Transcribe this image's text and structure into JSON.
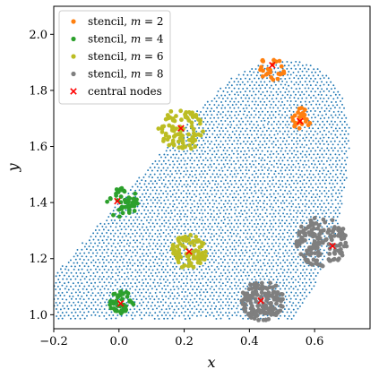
{
  "chart_data": {
    "type": "scatter",
    "title": "",
    "xlabel": "x",
    "ylabel": "y",
    "xlim": [
      -0.2,
      0.77
    ],
    "ylim": [
      0.95,
      2.1
    ],
    "x_ticks": [
      -0.2,
      0.0,
      0.2,
      0.4,
      0.6
    ],
    "y_ticks": [
      1.0,
      1.2,
      1.4,
      1.6,
      1.8,
      2.0
    ],
    "x_tick_labels": [
      "−0.2",
      "0.0",
      "0.2",
      "0.4",
      "0.6"
    ],
    "y_tick_labels": [
      "1.0",
      "1.2",
      "1.4",
      "1.6",
      "1.8",
      "2.0"
    ],
    "grid": false,
    "legend_position": "top-left",
    "domain_points": {
      "color": "#1f77b4",
      "boundary_left_upper": [
        [
          -0.2,
          1.14
        ],
        [
          0.13,
          1.58
        ],
        [
          0.25,
          1.74
        ],
        [
          0.35,
          1.85
        ],
        [
          0.45,
          1.9
        ],
        [
          0.53,
          1.91
        ]
      ],
      "boundary_right": [
        [
          0.53,
          1.91
        ],
        [
          0.62,
          1.88
        ],
        [
          0.68,
          1.8
        ],
        [
          0.71,
          1.66
        ],
        [
          0.7,
          1.5
        ],
        [
          0.67,
          1.3
        ],
        [
          0.62,
          1.15
        ],
        [
          0.58,
          1.06
        ],
        [
          0.53,
          0.985
        ]
      ],
      "boundary_bottom": [
        [
          0.53,
          0.985
        ],
        [
          -0.2,
          0.985
        ]
      ]
    },
    "series": [
      {
        "name": "stencil, m = 2",
        "name_main": "stencil, ",
        "name_var": "m",
        "name_value": " = 2",
        "color": "#ff7f0e",
        "center_x": 0.47,
        "center_y": 1.88,
        "radius": 0.04,
        "n_points": 25,
        "seed": 7,
        "marker": "circle"
      },
      {
        "name": "stencil, m = 2",
        "color": "#ff7f0e",
        "center_x": 0.56,
        "center_y": 1.7,
        "radius": 0.035,
        "n_points": 25,
        "seed": 11,
        "marker": "circle"
      },
      {
        "name": "stencil, m = 4",
        "name_main": "stencil, ",
        "name_var": "m",
        "name_value": " = 4",
        "color": "#2ca02c",
        "center_x": 0.01,
        "center_y": 1.4,
        "radius": 0.05,
        "n_points": 45,
        "seed": 13,
        "marker": "circle"
      },
      {
        "name": "stencil, m = 4",
        "color": "#2ca02c",
        "center_x": 0.005,
        "center_y": 1.045,
        "radius": 0.04,
        "n_points": 45,
        "seed": 17,
        "marker": "circle"
      },
      {
        "name": "stencil, m = 6",
        "name_main": "stencil, ",
        "name_var": "m",
        "name_value": " = 6",
        "color": "#bcbd22",
        "center_x": 0.19,
        "center_y": 1.66,
        "radius": 0.07,
        "n_points": 90,
        "seed": 19,
        "marker": "circle"
      },
      {
        "name": "stencil, m = 6",
        "color": "#bcbd22",
        "center_x": 0.215,
        "center_y": 1.225,
        "radius": 0.055,
        "n_points": 90,
        "seed": 23,
        "marker": "circle"
      },
      {
        "name": "stencil, m = 8",
        "name_main": "stencil, ",
        "name_var": "m",
        "name_value": " = 8",
        "color": "#7f7f7f",
        "center_x": 0.62,
        "center_y": 1.26,
        "radius": 0.08,
        "n_points": 150,
        "seed": 29,
        "marker": "circle"
      },
      {
        "name": "stencil, m = 8",
        "color": "#7f7f7f",
        "center_x": 0.44,
        "center_y": 1.05,
        "radius": 0.065,
        "n_points": 150,
        "seed": 31,
        "marker": "circle"
      }
    ],
    "central_nodes": {
      "name": "central nodes",
      "color": "#ff0000",
      "marker": "x",
      "points": [
        [
          0.47,
          1.89
        ],
        [
          0.555,
          1.69
        ],
        [
          0.19,
          1.665
        ],
        [
          -0.005,
          1.405
        ],
        [
          0.215,
          1.225
        ],
        [
          0.655,
          1.245
        ],
        [
          0.435,
          1.05
        ],
        [
          0.005,
          1.04
        ]
      ]
    },
    "legend": [
      {
        "main": "stencil, ",
        "var": "m",
        "value": " = 2",
        "color": "#ff7f0e",
        "marker": "circle"
      },
      {
        "main": "stencil, ",
        "var": "m",
        "value": " = 4",
        "color": "#2ca02c",
        "marker": "circle"
      },
      {
        "main": "stencil, ",
        "var": "m",
        "value": " = 6",
        "color": "#bcbd22",
        "marker": "circle"
      },
      {
        "main": "stencil, ",
        "var": "m",
        "value": " = 8",
        "color": "#7f7f7f",
        "marker": "circle"
      },
      {
        "main": "central nodes",
        "var": "",
        "value": "",
        "color": "#ff0000",
        "marker": "x"
      }
    ]
  }
}
